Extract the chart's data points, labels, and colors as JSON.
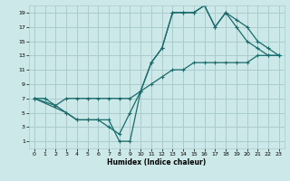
{
  "xlabel": "Humidex (Indice chaleur)",
  "bg_color": "#cce8e8",
  "line_color": "#1a6b6b",
  "grid_color": "#aacccc",
  "xlim": [
    -0.5,
    23.5
  ],
  "ylim": [
    0,
    20
  ],
  "xticks": [
    0,
    1,
    2,
    3,
    4,
    5,
    6,
    7,
    8,
    9,
    10,
    11,
    12,
    13,
    14,
    15,
    16,
    17,
    18,
    19,
    20,
    21,
    22,
    23
  ],
  "yticks": [
    1,
    3,
    5,
    7,
    9,
    11,
    13,
    15,
    17,
    19
  ],
  "line1_x": [
    0,
    1,
    2,
    3,
    4,
    5,
    6,
    7,
    8,
    9,
    10,
    11,
    12,
    13,
    14,
    15,
    16,
    17,
    18,
    19,
    20,
    21,
    22,
    23
  ],
  "line1_y": [
    7,
    7,
    6,
    7,
    7,
    7,
    7,
    7,
    7,
    7,
    8,
    9,
    10,
    11,
    11,
    12,
    12,
    12,
    12,
    12,
    12,
    13,
    13,
    13
  ],
  "line2_x": [
    0,
    2,
    3,
    4,
    5,
    6,
    7,
    8,
    9,
    10,
    11,
    12,
    13,
    14,
    15,
    16,
    17,
    18,
    19,
    20,
    21,
    22,
    23
  ],
  "line2_y": [
    7,
    6,
    5,
    4,
    4,
    4,
    3,
    2,
    5,
    8,
    12,
    14,
    19,
    19,
    19,
    20,
    17,
    19,
    18,
    17,
    15,
    14,
    13
  ],
  "line3_x": [
    0,
    3,
    4,
    5,
    6,
    7,
    8,
    9,
    10,
    11,
    12,
    13,
    14,
    15,
    16,
    17,
    18,
    19,
    20,
    21,
    22,
    23
  ],
  "line3_y": [
    7,
    5,
    4,
    4,
    4,
    4,
    1,
    1,
    8,
    12,
    14,
    19,
    19,
    19,
    20,
    17,
    19,
    17,
    15,
    14,
    13,
    13
  ]
}
